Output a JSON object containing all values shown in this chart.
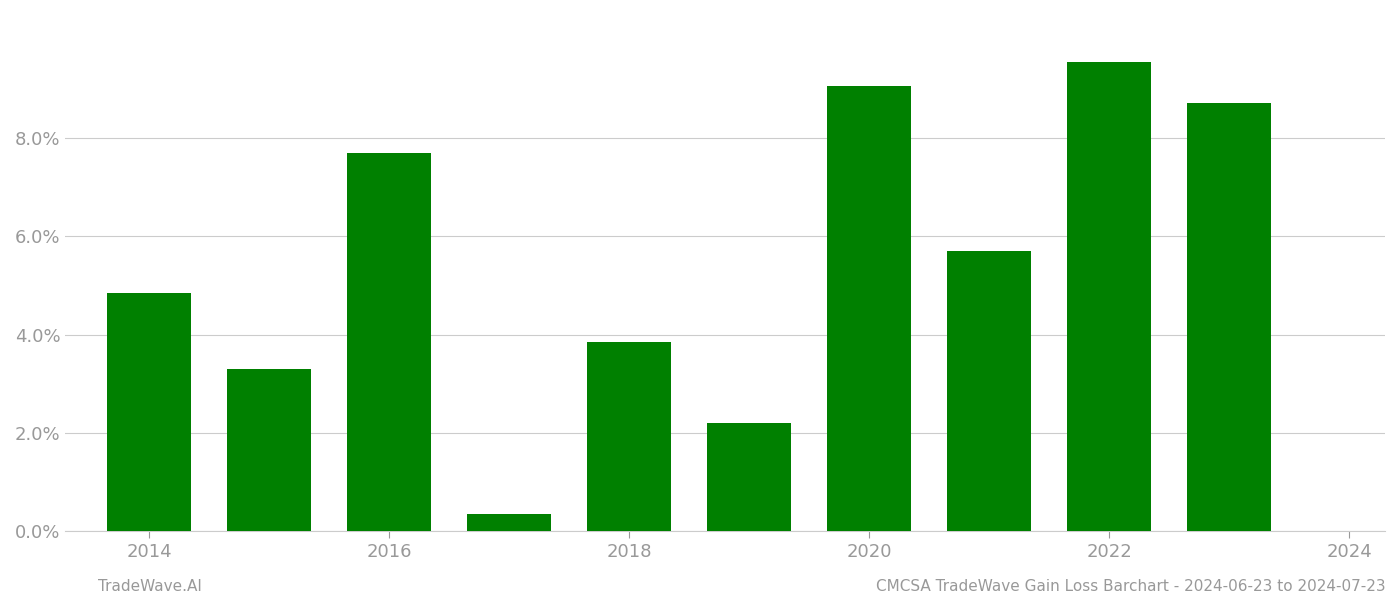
{
  "years": [
    2014,
    2015,
    2016,
    2017,
    2018,
    2019,
    2020,
    2021,
    2022,
    2023
  ],
  "values": [
    0.0485,
    0.033,
    0.077,
    0.0035,
    0.0385,
    0.022,
    0.0905,
    0.057,
    0.0955,
    0.087
  ],
  "bar_color": "#008000",
  "background_color": "#ffffff",
  "footer_left": "TradeWave.AI",
  "footer_right": "CMCSA TradeWave Gain Loss Barchart - 2024-06-23 to 2024-07-23",
  "ylim": [
    0,
    0.105
  ],
  "yticks": [
    0.0,
    0.02,
    0.04,
    0.06,
    0.08
  ],
  "xticks": [
    2014,
    2016,
    2018,
    2020,
    2022,
    2024
  ],
  "xtick_labels": [
    "2014",
    "2016",
    "2018",
    "2020",
    "2022",
    "2024"
  ],
  "xlim": [
    2013.3,
    2024.3
  ],
  "grid_color": "#cccccc",
  "tick_label_color": "#999999",
  "footer_color": "#999999",
  "bar_width": 0.7
}
